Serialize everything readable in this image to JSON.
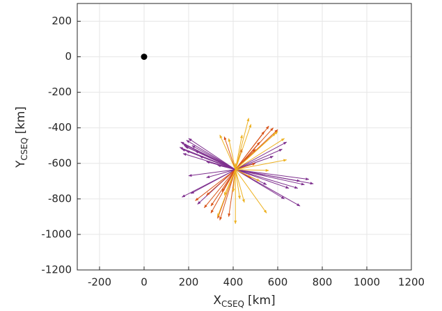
{
  "chart_data": {
    "type": "quiver",
    "xlabel": {
      "main": "X",
      "sub": "CSEQ",
      "unit": "[km]"
    },
    "ylabel": {
      "main": "Y",
      "sub": "CSEQ",
      "unit": "[km]"
    },
    "xlim": [
      -300,
      1200
    ],
    "xticks": [
      -200,
      0,
      200,
      400,
      600,
      800,
      1000,
      1200
    ],
    "ylim": [
      -1200,
      300
    ],
    "yticks": [
      -1200,
      -1000,
      -800,
      -600,
      -400,
      -200,
      0,
      200
    ],
    "grid": true,
    "point": {
      "x": 0,
      "y": 0,
      "color": "#000000"
    },
    "origin": {
      "x": 410,
      "y": -635
    },
    "series": [
      {
        "color": "#7e2f8e",
        "x": [
          165,
          175,
          180,
          185,
          170,
          190,
          200,
          215,
          230,
          250,
          280,
          330,
          190,
          160,
          175,
          200,
          280,
          170,
          240,
          210,
          720,
          760,
          740,
          700,
          690,
          650,
          700,
          630,
          620,
          640,
          580,
          550
        ],
        "y": [
          -480,
          -490,
          -500,
          -505,
          -520,
          -470,
          -460,
          -500,
          -530,
          -560,
          -590,
          -610,
          -530,
          -510,
          -545,
          -670,
          -680,
          -790,
          -830,
          -770,
          -720,
          -715,
          -690,
          -700,
          -740,
          -740,
          -840,
          -800,
          -520,
          -480,
          -560,
          -720
        ]
      },
      {
        "color": "#d95319",
        "x": [
          560,
          580,
          600,
          540,
          520,
          500,
          470,
          360,
          300,
          330,
          340,
          270,
          230,
          280,
          350,
          300,
          380,
          480,
          500,
          440
        ],
        "y": [
          -390,
          -400,
          -410,
          -420,
          -480,
          -520,
          -560,
          -450,
          -880,
          -910,
          -920,
          -850,
          -810,
          -780,
          -760,
          -840,
          -900,
          -680,
          -600,
          -520
        ]
      },
      {
        "color": "#edb120",
        "x": [
          470,
          440,
          380,
          340,
          330,
          410,
          400,
          360,
          430,
          450,
          550,
          520,
          560,
          640,
          600,
          590,
          480,
          410,
          630
        ],
        "y": [
          -345,
          -440,
          -460,
          -440,
          -900,
          -940,
          -760,
          -780,
          -800,
          -820,
          -880,
          -700,
          -640,
          -580,
          -420,
          -430,
          -380,
          -600,
          -460
        ]
      }
    ]
  }
}
